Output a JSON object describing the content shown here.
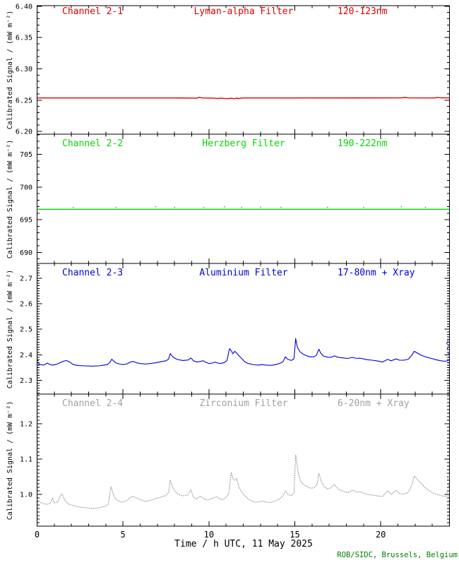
{
  "credit": "ROB/SIDC, Brussels, Belgium",
  "colors": {
    "background": "#ffffff",
    "axis": "#000000",
    "credit_green": "#008000",
    "channel_1_red": "#e00000",
    "channel_2_green": "#00d800",
    "channel_3_blue": "#0000dd",
    "channel_4_gray": "#a0a0a0"
  },
  "x_axis": {
    "label": "Time / h UTC, 11 May 2025",
    "min": 0,
    "max": 24,
    "major_step": 5,
    "minor_step": 1,
    "major_ticks": [
      0,
      5,
      10,
      15,
      20
    ],
    "tick_labels": [
      "0",
      "5",
      "10",
      "15",
      "20"
    ]
  },
  "chart_data": [
    {
      "type": "line",
      "channel_label": "Channel 2-1",
      "filter_label": "Lyman-alpha Filter",
      "range_label": "120-123nm",
      "color": "#e00000",
      "ylabel": "Calibrated Signal / (mW m⁻²)",
      "ymin": 6.1956,
      "ymax": 6.401,
      "yticks": [
        6.2,
        6.25,
        6.3,
        6.35,
        6.4
      ],
      "ytick_labels": [
        "6.20",
        "6.25",
        "6.30",
        "6.35",
        "6.40"
      ],
      "y_minor_step": 0.01,
      "points": [
        [
          0,
          6.2535
        ],
        [
          8.0,
          6.2535
        ],
        [
          9.3,
          6.2533
        ],
        [
          9.45,
          6.2545
        ],
        [
          9.6,
          6.2535
        ],
        [
          10.3,
          6.2533
        ],
        [
          10.5,
          6.2525
        ],
        [
          10.7,
          6.2533
        ],
        [
          10.9,
          6.2527
        ],
        [
          11.1,
          6.2524
        ],
        [
          11.3,
          6.253
        ],
        [
          11.45,
          6.2522
        ],
        [
          11.6,
          6.2531
        ],
        [
          11.75,
          6.2526
        ],
        [
          11.9,
          6.2534
        ],
        [
          12.1,
          6.2535
        ],
        [
          21.2,
          6.2536
        ],
        [
          21.4,
          6.2543
        ],
        [
          21.6,
          6.2536
        ],
        [
          23.1,
          6.2535
        ],
        [
          23.3,
          6.2542
        ],
        [
          23.5,
          6.2536
        ],
        [
          24,
          6.2536
        ]
      ],
      "scatter": []
    },
    {
      "type": "line",
      "channel_label": "Channel 2-2",
      "filter_label": "Herzberg Filter",
      "range_label": "190-222nm",
      "color": "#00d800",
      "ylabel": "Calibrated Signal / (mW m⁻²)",
      "ymin": 688.3,
      "ymax": 708.1,
      "yticks": [
        690,
        695,
        700,
        705
      ],
      "ytick_labels": [
        "690",
        "695",
        "700",
        "705"
      ],
      "y_minor_step": 1,
      "points": [
        [
          0,
          696.6
        ],
        [
          24,
          696.6
        ]
      ],
      "scatter": [
        [
          2.1,
          696.9
        ],
        [
          4.6,
          696.9
        ],
        [
          6.9,
          697.0
        ],
        [
          8.0,
          696.9
        ],
        [
          9.7,
          696.9
        ],
        [
          10.9,
          697.0
        ],
        [
          11.9,
          696.9
        ],
        [
          13.0,
          696.9
        ],
        [
          14.2,
          696.9
        ],
        [
          16.9,
          696.9
        ],
        [
          19.0,
          696.9
        ],
        [
          21.2,
          697.0
        ],
        [
          22.6,
          696.9
        ]
      ]
    },
    {
      "type": "line",
      "channel_label": "Channel 2-3",
      "filter_label": "Aluminium Filter",
      "range_label": "17-80nm + Xray",
      "color": "#0000dd",
      "ylabel": "Calibrated Signal / (mW m⁻²)",
      "ymin": 2.2465,
      "ymax": 2.7575,
      "yticks": [
        2.3,
        2.4,
        2.5,
        2.6,
        2.7
      ],
      "ytick_labels": [
        "2.3",
        "2.4",
        "2.5",
        "2.6",
        "2.7"
      ],
      "y_minor_step": 0.01,
      "points": [
        [
          0,
          2.372
        ],
        [
          0.15,
          2.362
        ],
        [
          0.4,
          2.36
        ],
        [
          0.6,
          2.368
        ],
        [
          0.75,
          2.362
        ],
        [
          0.9,
          2.36
        ],
        [
          1.1,
          2.362
        ],
        [
          1.3,
          2.368
        ],
        [
          1.5,
          2.374
        ],
        [
          1.7,
          2.378
        ],
        [
          1.9,
          2.372
        ],
        [
          2.1,
          2.362
        ],
        [
          2.4,
          2.358
        ],
        [
          2.8,
          2.357
        ],
        [
          3.2,
          2.356
        ],
        [
          3.6,
          2.357
        ],
        [
          3.9,
          2.36
        ],
        [
          4.1,
          2.362
        ],
        [
          4.25,
          2.372
        ],
        [
          4.35,
          2.383
        ],
        [
          4.45,
          2.376
        ],
        [
          4.6,
          2.368
        ],
        [
          4.8,
          2.364
        ],
        [
          5.0,
          2.362
        ],
        [
          5.2,
          2.364
        ],
        [
          5.45,
          2.372
        ],
        [
          5.6,
          2.374
        ],
        [
          5.8,
          2.369
        ],
        [
          6.0,
          2.366
        ],
        [
          6.3,
          2.364
        ],
        [
          6.6,
          2.366
        ],
        [
          6.9,
          2.369
        ],
        [
          7.2,
          2.373
        ],
        [
          7.5,
          2.377
        ],
        [
          7.65,
          2.383
        ],
        [
          7.75,
          2.405
        ],
        [
          7.85,
          2.396
        ],
        [
          8.0,
          2.387
        ],
        [
          8.2,
          2.381
        ],
        [
          8.5,
          2.378
        ],
        [
          8.8,
          2.38
        ],
        [
          8.95,
          2.388
        ],
        [
          9.1,
          2.377
        ],
        [
          9.3,
          2.372
        ],
        [
          9.5,
          2.374
        ],
        [
          9.65,
          2.377
        ],
        [
          9.8,
          2.372
        ],
        [
          10.0,
          2.366
        ],
        [
          10.2,
          2.368
        ],
        [
          10.35,
          2.372
        ],
        [
          10.5,
          2.368
        ],
        [
          10.7,
          2.366
        ],
        [
          10.9,
          2.37
        ],
        [
          11.05,
          2.378
        ],
        [
          11.2,
          2.424
        ],
        [
          11.3,
          2.416
        ],
        [
          11.4,
          2.404
        ],
        [
          11.5,
          2.414
        ],
        [
          11.6,
          2.408
        ],
        [
          11.75,
          2.396
        ],
        [
          11.9,
          2.386
        ],
        [
          12.1,
          2.372
        ],
        [
          12.3,
          2.366
        ],
        [
          12.6,
          2.361
        ],
        [
          12.9,
          2.36
        ],
        [
          13.1,
          2.362
        ],
        [
          13.3,
          2.36
        ],
        [
          13.6,
          2.359
        ],
        [
          13.9,
          2.362
        ],
        [
          14.1,
          2.366
        ],
        [
          14.3,
          2.372
        ],
        [
          14.45,
          2.392
        ],
        [
          14.6,
          2.382
        ],
        [
          14.8,
          2.378
        ],
        [
          14.95,
          2.384
        ],
        [
          15.05,
          2.464
        ],
        [
          15.15,
          2.43
        ],
        [
          15.3,
          2.412
        ],
        [
          15.5,
          2.402
        ],
        [
          15.7,
          2.396
        ],
        [
          15.9,
          2.392
        ],
        [
          16.1,
          2.392
        ],
        [
          16.25,
          2.398
        ],
        [
          16.4,
          2.422
        ],
        [
          16.5,
          2.408
        ],
        [
          16.65,
          2.396
        ],
        [
          16.9,
          2.391
        ],
        [
          17.1,
          2.39
        ],
        [
          17.3,
          2.396
        ],
        [
          17.5,
          2.391
        ],
        [
          17.7,
          2.389
        ],
        [
          17.9,
          2.387
        ],
        [
          18.1,
          2.386
        ],
        [
          18.35,
          2.39
        ],
        [
          18.6,
          2.386
        ],
        [
          18.8,
          2.387
        ],
        [
          19.0,
          2.384
        ],
        [
          19.2,
          2.381
        ],
        [
          19.5,
          2.379
        ],
        [
          19.8,
          2.376
        ],
        [
          20.1,
          2.372
        ],
        [
          20.4,
          2.382
        ],
        [
          20.6,
          2.377
        ],
        [
          20.9,
          2.384
        ],
        [
          21.1,
          2.379
        ],
        [
          21.35,
          2.379
        ],
        [
          21.6,
          2.383
        ],
        [
          21.8,
          2.398
        ],
        [
          21.95,
          2.414
        ],
        [
          22.1,
          2.408
        ],
        [
          22.3,
          2.4
        ],
        [
          22.6,
          2.392
        ],
        [
          22.9,
          2.387
        ],
        [
          23.2,
          2.381
        ],
        [
          23.5,
          2.377
        ],
        [
          23.75,
          2.375
        ],
        [
          23.95,
          2.378
        ]
      ],
      "scatter": [
        [
          0.05,
          2.378
        ],
        [
          0.1,
          2.36
        ],
        [
          23.85,
          2.445
        ],
        [
          23.9,
          2.455
        ],
        [
          23.88,
          2.425
        ],
        [
          23.93,
          2.405
        ],
        [
          23.96,
          2.39
        ],
        [
          23.92,
          2.37
        ],
        [
          23.98,
          2.435
        ]
      ]
    },
    {
      "type": "line",
      "channel_label": "Channel 2-4",
      "filter_label": "Zirconium Filter",
      "range_label": "6-20nm + Xray",
      "color": "#a0a0a0",
      "ylabel": "Calibrated Signal / (mW m⁻²)",
      "ymin": 0.91,
      "ymax": 1.284,
      "yticks": [
        1.0,
        1.1,
        1.2
      ],
      "ytick_labels": [
        "1.0",
        "1.1",
        "1.2"
      ],
      "y_minor_step": 0.01,
      "points": [
        [
          0,
          0.985
        ],
        [
          0.15,
          0.978
        ],
        [
          0.35,
          0.974
        ],
        [
          0.55,
          0.972
        ],
        [
          0.75,
          0.974
        ],
        [
          0.9,
          0.99
        ],
        [
          1.0,
          0.976
        ],
        [
          1.2,
          0.978
        ],
        [
          1.35,
          0.995
        ],
        [
          1.45,
          1.002
        ],
        [
          1.6,
          0.985
        ],
        [
          1.8,
          0.973
        ],
        [
          2.0,
          0.97
        ],
        [
          2.3,
          0.966
        ],
        [
          2.6,
          0.963
        ],
        [
          2.9,
          0.962
        ],
        [
          3.2,
          0.96
        ],
        [
          3.5,
          0.961
        ],
        [
          3.8,
          0.964
        ],
        [
          4.0,
          0.967
        ],
        [
          4.15,
          0.972
        ],
        [
          4.3,
          1.022
        ],
        [
          4.45,
          0.998
        ],
        [
          4.6,
          0.985
        ],
        [
          4.8,
          0.98
        ],
        [
          5.0,
          0.978
        ],
        [
          5.2,
          0.982
        ],
        [
          5.45,
          0.992
        ],
        [
          5.6,
          0.994
        ],
        [
          5.8,
          0.99
        ],
        [
          6.0,
          0.985
        ],
        [
          6.3,
          0.98
        ],
        [
          6.6,
          0.983
        ],
        [
          6.9,
          0.988
        ],
        [
          7.2,
          0.992
        ],
        [
          7.5,
          0.997
        ],
        [
          7.65,
          1.005
        ],
        [
          7.75,
          1.04
        ],
        [
          7.9,
          1.02
        ],
        [
          8.05,
          1.008
        ],
        [
          8.2,
          1.0
        ],
        [
          8.5,
          0.996
        ],
        [
          8.75,
          0.998
        ],
        [
          8.95,
          1.013
        ],
        [
          9.1,
          0.992
        ],
        [
          9.3,
          0.987
        ],
        [
          9.5,
          0.995
        ],
        [
          9.7,
          0.988
        ],
        [
          9.9,
          0.984
        ],
        [
          10.1,
          0.987
        ],
        [
          10.3,
          0.991
        ],
        [
          10.45,
          0.993
        ],
        [
          10.6,
          0.988
        ],
        [
          10.8,
          0.985
        ],
        [
          11.0,
          0.992
        ],
        [
          11.15,
          1.0
        ],
        [
          11.3,
          1.063
        ],
        [
          11.4,
          1.044
        ],
        [
          11.5,
          1.04
        ],
        [
          11.6,
          1.046
        ],
        [
          11.75,
          1.02
        ],
        [
          11.9,
          1.008
        ],
        [
          12.1,
          0.995
        ],
        [
          12.35,
          0.985
        ],
        [
          12.6,
          0.979
        ],
        [
          12.9,
          0.978
        ],
        [
          13.1,
          0.981
        ],
        [
          13.35,
          0.978
        ],
        [
          13.6,
          0.977
        ],
        [
          13.9,
          0.982
        ],
        [
          14.1,
          0.987
        ],
        [
          14.3,
          0.995
        ],
        [
          14.45,
          1.01
        ],
        [
          14.6,
          1.0
        ],
        [
          14.8,
          0.996
        ],
        [
          14.95,
          1.005
        ],
        [
          15.05,
          1.112
        ],
        [
          15.2,
          1.06
        ],
        [
          15.35,
          1.036
        ],
        [
          15.55,
          1.026
        ],
        [
          15.75,
          1.021
        ],
        [
          15.95,
          1.017
        ],
        [
          16.15,
          1.02
        ],
        [
          16.3,
          1.03
        ],
        [
          16.4,
          1.06
        ],
        [
          16.55,
          1.036
        ],
        [
          16.7,
          1.022
        ],
        [
          16.9,
          1.016
        ],
        [
          17.1,
          1.018
        ],
        [
          17.3,
          1.028
        ],
        [
          17.5,
          1.016
        ],
        [
          17.7,
          1.011
        ],
        [
          17.9,
          1.007
        ],
        [
          18.1,
          1.005
        ],
        [
          18.35,
          1.012
        ],
        [
          18.6,
          1.006
        ],
        [
          18.8,
          1.008
        ],
        [
          19.0,
          1.003
        ],
        [
          19.2,
          1.0
        ],
        [
          19.5,
          0.998
        ],
        [
          19.8,
          0.996
        ],
        [
          20.1,
          0.994
        ],
        [
          20.4,
          1.01
        ],
        [
          20.6,
          1.0
        ],
        [
          20.9,
          1.011
        ],
        [
          21.1,
          1.002
        ],
        [
          21.35,
          1.001
        ],
        [
          21.6,
          1.006
        ],
        [
          21.8,
          1.025
        ],
        [
          21.95,
          1.052
        ],
        [
          22.1,
          1.044
        ],
        [
          22.3,
          1.034
        ],
        [
          22.6,
          1.018
        ],
        [
          22.9,
          1.008
        ],
        [
          23.2,
          1.001
        ],
        [
          23.5,
          0.997
        ],
        [
          23.75,
          0.994
        ],
        [
          23.95,
          0.996
        ]
      ],
      "scatter": [
        [
          23.85,
          1.06
        ],
        [
          23.9,
          1.045
        ],
        [
          23.95,
          1.025
        ],
        [
          23.88,
          1.005
        ],
        [
          23.97,
          1.05
        ]
      ]
    }
  ]
}
